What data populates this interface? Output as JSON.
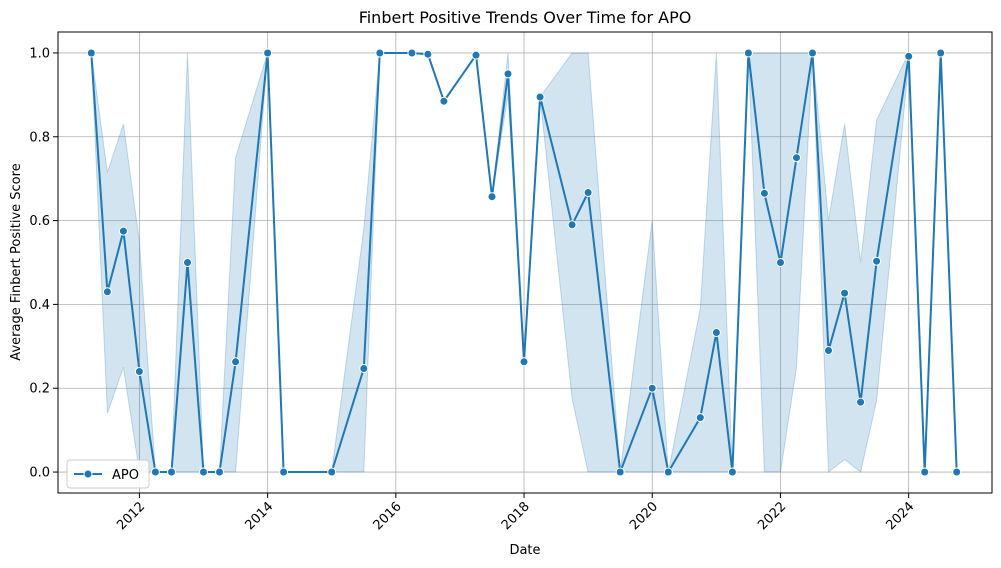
{
  "chart_data": {
    "type": "line",
    "title": "Finbert Positive Trends Over Time for APO",
    "xlabel": "Date",
    "ylabel": "Average Finbert Positive Score",
    "xlim": [
      2010.73,
      2025.3
    ],
    "ylim": [
      -0.05,
      1.05
    ],
    "x_ticks": [
      2012,
      2014,
      2016,
      2018,
      2020,
      2022,
      2024
    ],
    "x_tick_labels": [
      "2012",
      "2014",
      "2016",
      "2018",
      "2020",
      "2022",
      "2024"
    ],
    "y_ticks": [
      0.0,
      0.2,
      0.4,
      0.6,
      0.8,
      1.0
    ],
    "y_tick_labels": [
      "0.0",
      "0.2",
      "0.4",
      "0.6",
      "0.8",
      "1.0"
    ],
    "grid": true,
    "legend_position": "lower-left",
    "colors": {
      "line": "#1f77b4",
      "band": "#1f77b4",
      "grid": "#b0b0b0"
    },
    "series": [
      {
        "name": "APO",
        "marker": "circle",
        "points": [
          {
            "x": 2011.25,
            "y": 1.0
          },
          {
            "x": 2011.5,
            "y": 0.43,
            "lo": 0.14,
            "hi": 0.715
          },
          {
            "x": 2011.75,
            "y": 0.575,
            "lo": 0.25,
            "hi": 0.83
          },
          {
            "x": 2012.0,
            "y": 0.24,
            "lo": 0.0,
            "hi": 0.55
          },
          {
            "x": 2012.25,
            "y": 0.0
          },
          {
            "x": 2012.5,
            "y": 0.0
          },
          {
            "x": 2012.75,
            "y": 0.5,
            "lo": 0.0,
            "hi": 1.0
          },
          {
            "x": 2013.0,
            "y": 0.0
          },
          {
            "x": 2013.25,
            "y": 0.0
          },
          {
            "x": 2013.5,
            "y": 0.263,
            "lo": 0.0,
            "hi": 0.75
          },
          {
            "x": 2014.0,
            "y": 1.0
          },
          {
            "x": 2014.25,
            "y": 0.0
          },
          {
            "x": 2015.0,
            "y": 0.0
          },
          {
            "x": 2015.5,
            "y": 0.247,
            "lo": 0.0,
            "hi": 0.58
          },
          {
            "x": 2015.75,
            "y": 1.0
          },
          {
            "x": 2016.25,
            "y": 1.0
          },
          {
            "x": 2016.5,
            "y": 0.997
          },
          {
            "x": 2016.75,
            "y": 0.885
          },
          {
            "x": 2017.25,
            "y": 0.995
          },
          {
            "x": 2017.5,
            "y": 0.657
          },
          {
            "x": 2017.75,
            "y": 0.95,
            "lo": 0.9,
            "hi": 1.0
          },
          {
            "x": 2018.0,
            "y": 0.263
          },
          {
            "x": 2018.25,
            "y": 0.895
          },
          {
            "x": 2018.75,
            "y": 0.59,
            "lo": 0.175,
            "hi": 1.0
          },
          {
            "x": 2019.0,
            "y": 0.667,
            "lo": 0.0,
            "hi": 1.0
          },
          {
            "x": 2019.5,
            "y": 0.0
          },
          {
            "x": 2020.0,
            "y": 0.2,
            "lo": 0.0,
            "hi": 0.6
          },
          {
            "x": 2020.25,
            "y": 0.0
          },
          {
            "x": 2020.75,
            "y": 0.13,
            "lo": 0.0,
            "hi": 0.39
          },
          {
            "x": 2021.0,
            "y": 0.333,
            "lo": 0.0,
            "hi": 1.0
          },
          {
            "x": 2021.25,
            "y": 0.0
          },
          {
            "x": 2021.5,
            "y": 1.0
          },
          {
            "x": 2021.75,
            "y": 0.665,
            "lo": 0.0,
            "hi": 1.0
          },
          {
            "x": 2022.0,
            "y": 0.5,
            "lo": 0.0,
            "hi": 1.0
          },
          {
            "x": 2022.25,
            "y": 0.75,
            "lo": 0.25,
            "hi": 1.0
          },
          {
            "x": 2022.5,
            "y": 1.0
          },
          {
            "x": 2022.75,
            "y": 0.29,
            "lo": 0.0,
            "hi": 0.6
          },
          {
            "x": 2023.0,
            "y": 0.427,
            "lo": 0.03,
            "hi": 0.83
          },
          {
            "x": 2023.25,
            "y": 0.167,
            "lo": 0.0,
            "hi": 0.5
          },
          {
            "x": 2023.5,
            "y": 0.503,
            "lo": 0.17,
            "hi": 0.84
          },
          {
            "x": 2024.0,
            "y": 0.992,
            "lo": 0.98,
            "hi": 1.0
          },
          {
            "x": 2024.25,
            "y": 0.0
          },
          {
            "x": 2024.5,
            "y": 1.0
          },
          {
            "x": 2024.75,
            "y": 0.0
          }
        ]
      }
    ]
  }
}
